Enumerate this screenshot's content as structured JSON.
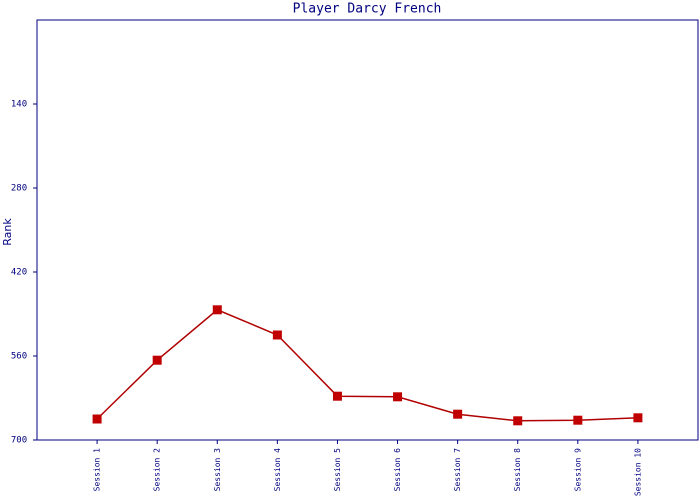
{
  "chart_data": {
    "type": "line",
    "title": "Player Darcy French",
    "y_label": "Rank",
    "categories": [
      "Session 1",
      "Session 2",
      "Session 3",
      "Session 4",
      "Session 5",
      "Session 6",
      "Session 7",
      "Session 8",
      "Session 9",
      "Session 10"
    ],
    "values": [
      665,
      567,
      483,
      525,
      627,
      628,
      657,
      668,
      667,
      663
    ],
    "color": "#b00000",
    "marker_color": "#c00000",
    "ylim": [
      0,
      700
    ],
    "y_inverted": true,
    "yticks": [
      140,
      280,
      420,
      560,
      700
    ]
  }
}
